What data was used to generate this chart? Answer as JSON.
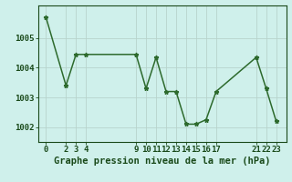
{
  "x": [
    0,
    2,
    3,
    4,
    9,
    10,
    11,
    12,
    13,
    14,
    15,
    16,
    17,
    21,
    22,
    23
  ],
  "y": [
    1005.7,
    1003.4,
    1004.45,
    1004.45,
    1004.45,
    1003.3,
    1004.35,
    1003.2,
    1003.2,
    1002.1,
    1002.1,
    1002.25,
    1003.2,
    1004.35,
    1003.3,
    1002.2
  ],
  "line_color": "#2d6a2d",
  "marker": "*",
  "marker_size": 3.5,
  "background_color": "#cff0eb",
  "grid_color": "#b8d4cc",
  "xlabel": "Graphe pression niveau de la mer (hPa)",
  "xlabel_fontsize": 7.5,
  "xlabel_color": "#1a4a1a",
  "xtick_labels": [
    "0",
    "2",
    "3",
    "4",
    "9",
    "10",
    "11",
    "12",
    "13",
    "14",
    "15",
    "16",
    "17",
    "21",
    "22",
    "23"
  ],
  "ytick_labels": [
    "1002",
    "1003",
    "1004",
    "1005"
  ],
  "ytick_values": [
    1002,
    1003,
    1004,
    1005
  ],
  "ylim": [
    1001.5,
    1006.1
  ],
  "xlim": [
    -0.8,
    24.0
  ],
  "tick_color": "#1a4a1a",
  "tick_fontsize": 6.5,
  "line_width": 1.1
}
